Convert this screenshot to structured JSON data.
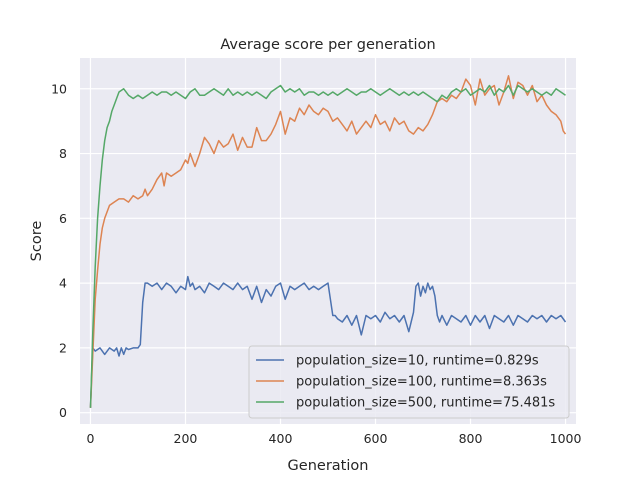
{
  "chart_data": {
    "type": "line",
    "title": "Average score per generation",
    "xlabel": "Generation",
    "ylabel": "Score",
    "xlim": [
      -22,
      1022
    ],
    "ylim": [
      -0.35,
      10.95
    ],
    "xticks": [
      0,
      200,
      400,
      600,
      800,
      1000
    ],
    "yticks": [
      0,
      2,
      4,
      6,
      8,
      10
    ],
    "grid": true,
    "legend_position": "lower-right",
    "series": [
      {
        "name": "population_size=10, runtime=0.829s",
        "color": "#4c72b0",
        "x": [
          0,
          3,
          5,
          10,
          20,
          30,
          40,
          50,
          55,
          60,
          65,
          70,
          75,
          80,
          90,
          100,
          105,
          110,
          115,
          120,
          130,
          140,
          150,
          160,
          170,
          180,
          190,
          200,
          205,
          210,
          215,
          220,
          230,
          240,
          250,
          260,
          270,
          280,
          290,
          300,
          310,
          320,
          330,
          340,
          350,
          360,
          370,
          380,
          390,
          400,
          410,
          420,
          430,
          440,
          450,
          460,
          470,
          480,
          490,
          500,
          505,
          510,
          515,
          520,
          530,
          540,
          550,
          560,
          570,
          580,
          590,
          600,
          610,
          620,
          630,
          640,
          650,
          660,
          670,
          680,
          685,
          690,
          695,
          700,
          705,
          710,
          715,
          720,
          725,
          730,
          735,
          740,
          750,
          760,
          770,
          780,
          790,
          800,
          810,
          820,
          830,
          840,
          850,
          860,
          870,
          880,
          890,
          900,
          910,
          920,
          930,
          940,
          950,
          960,
          970,
          980,
          990,
          1000
        ],
        "values": [
          0.15,
          1.4,
          2.0,
          1.9,
          2.0,
          1.8,
          2.0,
          1.9,
          2.0,
          1.75,
          2.0,
          1.8,
          2.0,
          1.95,
          2.0,
          2.0,
          2.1,
          3.4,
          4.0,
          4.0,
          3.9,
          4.0,
          3.8,
          4.0,
          3.9,
          3.7,
          3.9,
          3.8,
          4.2,
          3.9,
          4.0,
          3.8,
          3.9,
          3.7,
          4.0,
          3.9,
          3.8,
          4.0,
          3.9,
          3.8,
          4.0,
          3.8,
          3.9,
          3.5,
          3.9,
          3.4,
          3.8,
          3.6,
          3.9,
          4.0,
          3.5,
          3.9,
          3.8,
          3.9,
          4.0,
          3.8,
          3.9,
          3.8,
          3.9,
          4.0,
          3.5,
          3.0,
          3.0,
          2.9,
          2.8,
          3.0,
          2.7,
          3.0,
          2.4,
          3.0,
          2.9,
          3.0,
          2.8,
          3.1,
          2.9,
          3.0,
          2.8,
          3.0,
          2.5,
          3.1,
          3.9,
          4.0,
          3.6,
          3.9,
          3.7,
          4.0,
          3.8,
          3.9,
          3.6,
          3.0,
          2.8,
          3.0,
          2.7,
          3.0,
          2.9,
          2.8,
          3.0,
          2.7,
          3.0,
          2.8,
          3.0,
          2.6,
          3.0,
          2.9,
          2.8,
          3.0,
          2.7,
          3.0,
          2.9,
          2.8,
          3.0,
          2.9,
          3.0,
          2.8,
          3.0,
          2.9,
          3.0,
          2.8
        ]
      },
      {
        "name": "population_size=100, runtime=8.363s",
        "color": "#dd8452",
        "x": [
          0,
          5,
          10,
          15,
          20,
          25,
          30,
          40,
          50,
          60,
          70,
          80,
          90,
          100,
          110,
          115,
          120,
          130,
          140,
          150,
          155,
          160,
          170,
          180,
          190,
          200,
          205,
          210,
          220,
          230,
          240,
          250,
          260,
          270,
          280,
          290,
          300,
          310,
          320,
          330,
          340,
          350,
          360,
          370,
          380,
          390,
          400,
          410,
          420,
          430,
          440,
          450,
          460,
          470,
          480,
          490,
          500,
          510,
          520,
          530,
          540,
          550,
          560,
          570,
          580,
          590,
          600,
          610,
          620,
          630,
          640,
          650,
          660,
          670,
          680,
          690,
          700,
          710,
          720,
          730,
          740,
          750,
          760,
          770,
          780,
          790,
          800,
          810,
          820,
          830,
          840,
          850,
          860,
          870,
          880,
          890,
          900,
          910,
          920,
          930,
          940,
          950,
          960,
          970,
          980,
          990,
          995,
          1000
        ],
        "values": [
          0.15,
          1.8,
          3.5,
          4.4,
          5.2,
          5.7,
          6.0,
          6.4,
          6.5,
          6.6,
          6.6,
          6.5,
          6.7,
          6.6,
          6.7,
          6.9,
          6.7,
          6.9,
          7.2,
          7.4,
          7.0,
          7.4,
          7.3,
          7.4,
          7.5,
          7.8,
          7.7,
          8.0,
          7.6,
          8.0,
          8.5,
          8.3,
          8.0,
          8.4,
          8.2,
          8.3,
          8.6,
          8.1,
          8.5,
          8.2,
          8.2,
          8.8,
          8.4,
          8.4,
          8.6,
          8.9,
          9.3,
          8.6,
          9.1,
          9.0,
          9.4,
          9.2,
          9.5,
          9.3,
          9.2,
          9.4,
          9.3,
          9.0,
          9.1,
          8.9,
          8.7,
          9.0,
          8.6,
          8.8,
          9.0,
          8.8,
          9.2,
          8.9,
          9.0,
          8.7,
          9.1,
          8.9,
          9.0,
          8.7,
          8.6,
          8.8,
          8.7,
          8.9,
          9.2,
          9.6,
          9.7,
          9.6,
          9.8,
          9.7,
          9.9,
          10.3,
          10.1,
          9.5,
          10.3,
          9.8,
          10.0,
          10.1,
          9.5,
          9.9,
          10.4,
          9.7,
          10.2,
          10.1,
          9.8,
          10.1,
          9.6,
          9.8,
          9.5,
          9.3,
          9.2,
          9.0,
          8.7,
          8.6
        ]
      },
      {
        "name": "population_size=500, runtime=75.481s",
        "color": "#55a868",
        "x": [
          0,
          5,
          10,
          15,
          20,
          25,
          30,
          35,
          40,
          45,
          50,
          55,
          60,
          70,
          80,
          90,
          100,
          110,
          120,
          130,
          140,
          150,
          160,
          170,
          180,
          190,
          200,
          210,
          220,
          230,
          240,
          250,
          260,
          270,
          280,
          290,
          300,
          310,
          320,
          330,
          340,
          350,
          360,
          370,
          380,
          390,
          400,
          410,
          420,
          430,
          440,
          450,
          460,
          470,
          480,
          490,
          500,
          510,
          520,
          530,
          540,
          550,
          560,
          570,
          580,
          590,
          600,
          610,
          620,
          630,
          640,
          650,
          660,
          670,
          680,
          690,
          700,
          710,
          720,
          730,
          740,
          750,
          760,
          770,
          780,
          790,
          800,
          810,
          820,
          830,
          840,
          850,
          860,
          870,
          880,
          890,
          900,
          910,
          920,
          930,
          940,
          950,
          960,
          970,
          980,
          990,
          1000
        ],
        "values": [
          0.15,
          2.5,
          4.5,
          6.0,
          7.0,
          7.8,
          8.4,
          8.8,
          9.0,
          9.3,
          9.5,
          9.7,
          9.9,
          10.0,
          9.8,
          9.7,
          9.8,
          9.7,
          9.8,
          9.9,
          9.8,
          9.9,
          9.9,
          9.8,
          9.9,
          9.8,
          9.7,
          9.9,
          10.0,
          9.8,
          9.8,
          9.9,
          10.0,
          9.9,
          9.8,
          10.0,
          9.8,
          9.9,
          9.8,
          9.9,
          9.8,
          9.9,
          9.8,
          9.7,
          9.9,
          10.0,
          10.1,
          9.9,
          10.0,
          9.9,
          10.0,
          9.8,
          9.9,
          9.9,
          9.8,
          9.9,
          9.8,
          9.9,
          9.8,
          9.9,
          10.0,
          9.9,
          9.8,
          9.9,
          9.9,
          10.0,
          9.9,
          9.8,
          9.9,
          10.0,
          9.9,
          9.8,
          9.9,
          9.8,
          9.9,
          9.8,
          9.9,
          9.8,
          9.7,
          9.6,
          9.8,
          9.7,
          9.9,
          10.0,
          9.9,
          10.0,
          9.8,
          9.9,
          10.0,
          9.9,
          10.1,
          9.8,
          10.0,
          9.9,
          10.1,
          9.8,
          10.1,
          10.0,
          9.9,
          10.0,
          9.9,
          9.8,
          9.9,
          9.8,
          10.0,
          9.9,
          9.8
        ]
      }
    ]
  }
}
